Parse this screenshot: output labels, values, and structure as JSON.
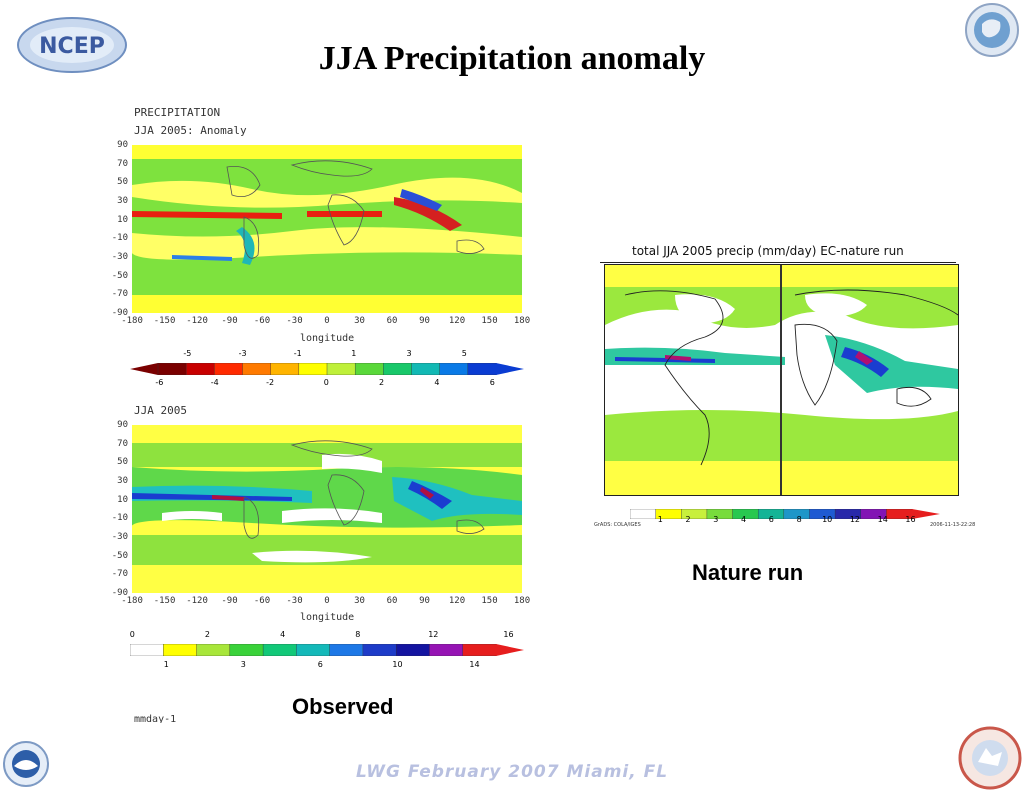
{
  "slide": {
    "title": "JJA Precipitation anomaly",
    "footer": "LWG  February 2007 Miami, FL",
    "logo_ncep": "NCEP"
  },
  "panel_anomaly": {
    "line1": "PRECIPITATION",
    "line2": "JJA 2005: Anomaly",
    "lat_ticks": [
      "90",
      "70",
      "50",
      "30",
      "10",
      "-10",
      "-30",
      "-50",
      "-70",
      "-90"
    ],
    "lon_ticks": [
      "-180",
      "-150",
      "-120",
      "-90",
      "-60",
      "-30",
      "0",
      "30",
      "60",
      "90",
      "120",
      "150",
      "180"
    ],
    "xlabel": "longitude",
    "cbar_top": [
      "-5",
      "-3",
      "-1",
      "1",
      "3",
      "5"
    ],
    "cbar_bottom": [
      "-6",
      "-4",
      "-2",
      "0",
      "2",
      "4",
      "6"
    ],
    "cbar_colors": [
      "#7a0000",
      "#c80000",
      "#ff2a00",
      "#ff7a00",
      "#ffb400",
      "#ffff00",
      "#bff03a",
      "#5ad83a",
      "#19c86a",
      "#12b9b4",
      "#0a7ae6",
      "#0a3cd2"
    ]
  },
  "panel_observed": {
    "line1": "JJA 2005",
    "lat_ticks": [
      "90",
      "70",
      "50",
      "30",
      "10",
      "-10",
      "-30",
      "-50",
      "-70",
      "-90"
    ],
    "lon_ticks": [
      "-180",
      "-150",
      "-120",
      "-90",
      "-60",
      "-30",
      "0",
      "30",
      "60",
      "90",
      "120",
      "150",
      "180"
    ],
    "xlabel": "longitude",
    "cbar_top": [
      "0",
      "2",
      "4",
      "8",
      "12",
      "16"
    ],
    "cbar_bottom": [
      "1",
      "3",
      "6",
      "10",
      "14"
    ],
    "units": "mmday-1",
    "caption": "Observed",
    "cbar_colors": [
      "#ffffff",
      "#ffff00",
      "#a8e63a",
      "#3ad23a",
      "#12c878",
      "#14b9b9",
      "#1e78e6",
      "#1e3cc8",
      "#1414a0",
      "#9614b4",
      "#e61e1e"
    ]
  },
  "panel_nature": {
    "title": "total JJA 2005 precip (mm/day) EC-nature run",
    "cbar_ticks": [
      "1",
      "2",
      "3",
      "4",
      "6",
      "8",
      "10",
      "12",
      "14",
      "16"
    ],
    "left_credit": "GrADS: COLA/IGES",
    "right_credit": "2006-11-13-22:28",
    "caption": "Nature run",
    "cbar_colors": [
      "#ffffff",
      "#ffff00",
      "#c8f03c",
      "#78dc3c",
      "#28c850",
      "#14b496",
      "#1e96c8",
      "#1e5ad2",
      "#2828aa",
      "#8214b4",
      "#e61e1e"
    ]
  }
}
